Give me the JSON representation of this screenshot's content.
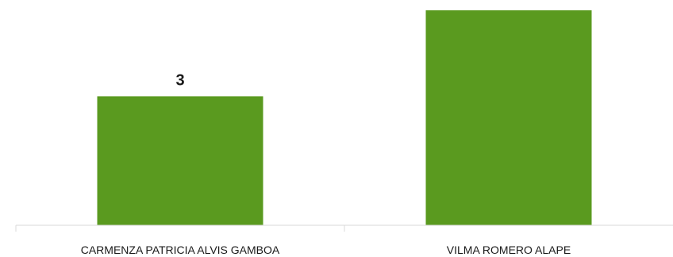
{
  "chart_data": {
    "type": "bar",
    "categories": [
      "CARMENZA PATRICIA ALVIS GAMBOA",
      "VILMA ROMERO ALAPE"
    ],
    "values": [
      3,
      5
    ],
    "data_labels": [
      "3",
      ""
    ],
    "title": "",
    "xlabel": "",
    "ylabel": "",
    "ylim": [
      0,
      5
    ],
    "grid": false,
    "legend": "none",
    "bar_color": "#5a9a1f"
  }
}
